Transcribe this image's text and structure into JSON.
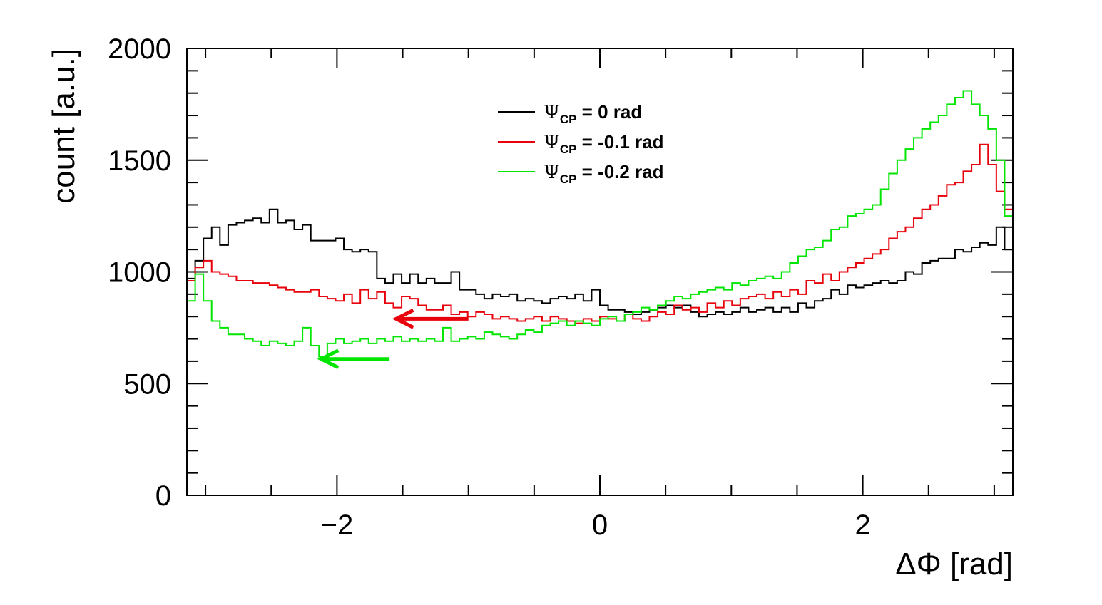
{
  "chart_data": {
    "type": "line",
    "style": "step-histogram",
    "xlabel": "ΔΦ [rad]",
    "ylabel": "count [a.u.]",
    "xlim": [
      -3.1416,
      3.1416
    ],
    "ylim": [
      0,
      2000
    ],
    "x_ticks": [
      -2,
      0,
      2
    ],
    "x_tick_labels": [
      "−2",
      "0",
      "2"
    ],
    "y_ticks": [
      0,
      500,
      1000,
      1500,
      2000
    ],
    "y_tick_labels": [
      "0",
      "500",
      "1000",
      "1500",
      "2000"
    ],
    "legend_position": "top-center",
    "bin_edges": [
      -3.1416,
      3.1416
    ],
    "bin_count": 100,
    "series": [
      {
        "name": "0 rad",
        "legend_symbol": "Ψ",
        "legend_subscript": "CP",
        "legend_prefix": " = ",
        "color": "#000000",
        "values": [
          970,
          1050,
          1150,
          1200,
          1120,
          1210,
          1220,
          1230,
          1240,
          1220,
          1280,
          1220,
          1230,
          1190,
          1210,
          1140,
          1140,
          1140,
          1150,
          1100,
          1090,
          1100,
          1090,
          970,
          950,
          990,
          950,
          990,
          950,
          970,
          950,
          950,
          1000,
          920,
          920,
          900,
          880,
          900,
          890,
          900,
          870,
          880,
          870,
          860,
          880,
          890,
          880,
          900,
          870,
          920,
          850,
          830,
          830,
          820,
          810,
          820,
          830,
          840,
          850,
          840,
          850,
          820,
          800,
          810,
          820,
          810,
          820,
          840,
          820,
          830,
          840,
          820,
          840,
          820,
          860,
          840,
          870,
          880,
          920,
          900,
          940,
          930,
          940,
          950,
          960,
          950,
          960,
          1000,
          990,
          1040,
          1050,
          1060,
          1060,
          1100,
          1090,
          1110,
          1130,
          1120,
          1200,
          1100
        ]
      },
      {
        "name": "-0.1 rad",
        "legend_symbol": "Ψ",
        "legend_subscript": "CP",
        "legend_prefix": " = ",
        "color": "#e8000b",
        "values": [
          960,
          1020,
          1050,
          1000,
          990,
          980,
          960,
          960,
          950,
          950,
          940,
          930,
          920,
          910,
          910,
          920,
          890,
          880,
          870,
          900,
          860,
          920,
          880,
          910,
          860,
          840,
          890,
          880,
          850,
          830,
          830,
          850,
          810,
          820,
          800,
          820,
          810,
          790,
          800,
          790,
          780,
          790,
          800,
          780,
          800,
          790,
          780,
          770,
          790,
          780,
          800,
          790,
          780,
          810,
          790,
          780,
          800,
          820,
          810,
          850,
          830,
          840,
          820,
          860,
          840,
          870,
          850,
          880,
          890,
          900,
          880,
          910,
          890,
          920,
          900,
          960,
          950,
          990,
          960,
          1000,
          1020,
          1040,
          1060,
          1080,
          1100,
          1150,
          1180,
          1200,
          1240,
          1280,
          1300,
          1340,
          1390,
          1400,
          1450,
          1480,
          1570,
          1480,
          1360,
          1280
        ]
      },
      {
        "name": "-0.2 rad",
        "legend_symbol": "Ψ",
        "legend_subscript": "CP",
        "legend_prefix": " = ",
        "color": "#00e600",
        "values": [
          870,
          990,
          870,
          780,
          750,
          720,
          720,
          700,
          690,
          670,
          690,
          680,
          670,
          690,
          750,
          670,
          620,
          680,
          700,
          680,
          690,
          700,
          680,
          700,
          690,
          710,
          690,
          700,
          690,
          700,
          690,
          750,
          690,
          700,
          710,
          700,
          730,
          720,
          710,
          700,
          720,
          740,
          730,
          760,
          770,
          780,
          760,
          780,
          770,
          760,
          790,
          800,
          780,
          810,
          820,
          840,
          830,
          850,
          870,
          890,
          880,
          900,
          910,
          920,
          930,
          920,
          950,
          940,
          960,
          970,
          980,
          970,
          1000,
          1040,
          1070,
          1100,
          1110,
          1140,
          1190,
          1200,
          1250,
          1260,
          1280,
          1300,
          1370,
          1440,
          1500,
          1550,
          1600,
          1640,
          1670,
          1700,
          1750,
          1780,
          1810,
          1750,
          1700,
          1640,
          1500,
          1250
        ]
      }
    ],
    "annotations": [
      {
        "type": "arrow",
        "color": "#e8000b",
        "direction": "left",
        "x_from": -1.0,
        "x_to": -1.55,
        "y": 790
      },
      {
        "type": "arrow",
        "color": "#00e600",
        "direction": "left",
        "x_from": -1.6,
        "x_to": -2.12,
        "y": 610
      }
    ]
  }
}
